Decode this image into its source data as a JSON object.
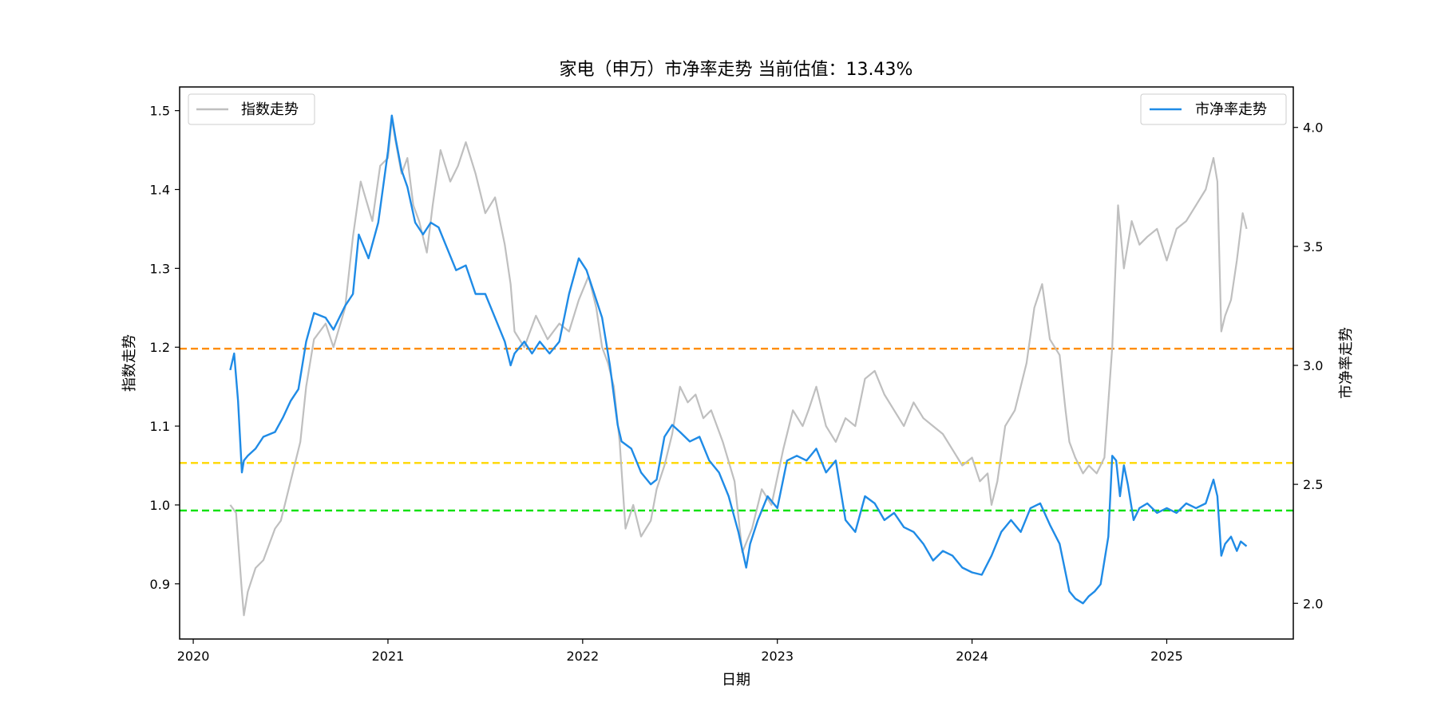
{
  "chart_data": {
    "type": "line",
    "title": "家电（申万）市净率走势 当前估值：13.43%",
    "xlabel": "日期",
    "ylabel_left": "指数走势",
    "ylabel_right": "市净率走势",
    "x_ticks": [
      "2020",
      "2021",
      "2022",
      "2023",
      "2024",
      "2025"
    ],
    "x_range": [
      2019.93,
      2025.65
    ],
    "ylim_left": [
      0.83,
      1.53
    ],
    "yticks_left": [
      0.9,
      1.0,
      1.1,
      1.2,
      1.3,
      1.4,
      1.5
    ],
    "ylim_right": [
      1.85,
      4.17
    ],
    "yticks_right": [
      2.0,
      2.5,
      3.0,
      3.5,
      4.0
    ],
    "legend_left": {
      "label": "指数走势",
      "position": "top-left"
    },
    "legend_right": {
      "label": "市净率走势",
      "position": "top-right"
    },
    "series": [
      {
        "name": "指数走势",
        "axis": "left",
        "color": "#bfbfbf",
        "x": [
          2020.19,
          2020.22,
          2020.25,
          2020.26,
          2020.28,
          2020.32,
          2020.36,
          2020.42,
          2020.45,
          2020.5,
          2020.55,
          2020.58,
          2020.62,
          2020.68,
          2020.72,
          2020.78,
          2020.82,
          2020.86,
          2020.92,
          2020.96,
          2021.0,
          2021.02,
          2021.04,
          2021.07,
          2021.1,
          2021.13,
          2021.16,
          2021.2,
          2021.23,
          2021.27,
          2021.32,
          2021.36,
          2021.4,
          2021.45,
          2021.5,
          2021.55,
          2021.6,
          2021.63,
          2021.65,
          2021.7,
          2021.76,
          2021.82,
          2021.88,
          2021.93,
          2021.98,
          2022.03,
          2022.07,
          2022.1,
          2022.13,
          2022.16,
          2022.19,
          2022.22,
          2022.26,
          2022.3,
          2022.35,
          2022.38,
          2022.42,
          2022.46,
          2022.5,
          2022.54,
          2022.58,
          2022.62,
          2022.66,
          2022.72,
          2022.78,
          2022.82,
          2022.87,
          2022.92,
          2022.97,
          2023.03,
          2023.08,
          2023.13,
          2023.16,
          2023.2,
          2023.25,
          2023.3,
          2023.35,
          2023.4,
          2023.45,
          2023.5,
          2023.55,
          2023.6,
          2023.65,
          2023.7,
          2023.75,
          2023.8,
          2023.85,
          2023.9,
          2023.95,
          2024.0,
          2024.04,
          2024.08,
          2024.1,
          2024.13,
          2024.17,
          2024.22,
          2024.28,
          2024.32,
          2024.36,
          2024.4,
          2024.45,
          2024.48,
          2024.5,
          2024.53,
          2024.57,
          2024.6,
          2024.64,
          2024.68,
          2024.72,
          2024.75,
          2024.78,
          2024.82,
          2024.86,
          2024.9,
          2024.95,
          2025.0,
          2025.05,
          2025.1,
          2025.15,
          2025.2,
          2025.24,
          2025.26,
          2025.28,
          2025.3,
          2025.33,
          2025.36,
          2025.39,
          2025.41
        ],
        "values": [
          1.0,
          0.99,
          0.89,
          0.86,
          0.89,
          0.92,
          0.93,
          0.97,
          0.98,
          1.03,
          1.08,
          1.15,
          1.21,
          1.23,
          1.2,
          1.25,
          1.34,
          1.41,
          1.36,
          1.43,
          1.44,
          1.49,
          1.46,
          1.42,
          1.44,
          1.38,
          1.36,
          1.32,
          1.38,
          1.45,
          1.41,
          1.43,
          1.46,
          1.42,
          1.37,
          1.39,
          1.33,
          1.28,
          1.22,
          1.2,
          1.24,
          1.21,
          1.23,
          1.22,
          1.26,
          1.29,
          1.25,
          1.2,
          1.18,
          1.15,
          1.08,
          0.97,
          1.0,
          0.96,
          0.98,
          1.02,
          1.05,
          1.09,
          1.15,
          1.13,
          1.14,
          1.11,
          1.12,
          1.08,
          1.03,
          0.94,
          0.97,
          1.02,
          1.0,
          1.07,
          1.12,
          1.1,
          1.12,
          1.15,
          1.1,
          1.08,
          1.11,
          1.1,
          1.16,
          1.17,
          1.14,
          1.12,
          1.1,
          1.13,
          1.11,
          1.1,
          1.09,
          1.07,
          1.05,
          1.06,
          1.03,
          1.04,
          1.0,
          1.03,
          1.1,
          1.12,
          1.18,
          1.25,
          1.28,
          1.21,
          1.19,
          1.12,
          1.08,
          1.06,
          1.04,
          1.05,
          1.04,
          1.06,
          1.2,
          1.38,
          1.3,
          1.36,
          1.33,
          1.34,
          1.35,
          1.31,
          1.35,
          1.36,
          1.38,
          1.4,
          1.44,
          1.41,
          1.22,
          1.24,
          1.26,
          1.31,
          1.37,
          1.35
        ]
      },
      {
        "name": "市净率走势",
        "axis": "right",
        "color": "#1f8be6",
        "x": [
          2020.19,
          2020.21,
          2020.23,
          2020.25,
          2020.26,
          2020.28,
          2020.32,
          2020.36,
          2020.42,
          2020.46,
          2020.5,
          2020.54,
          2020.58,
          2020.62,
          2020.68,
          2020.72,
          2020.78,
          2020.82,
          2020.85,
          2020.9,
          2020.95,
          2021.0,
          2021.02,
          2021.04,
          2021.07,
          2021.1,
          2021.14,
          2021.18,
          2021.22,
          2021.26,
          2021.3,
          2021.35,
          2021.4,
          2021.45,
          2021.5,
          2021.55,
          2021.6,
          2021.63,
          2021.65,
          2021.7,
          2021.74,
          2021.78,
          2021.83,
          2021.88,
          2021.93,
          2021.98,
          2022.02,
          2022.06,
          2022.1,
          2022.14,
          2022.18,
          2022.2,
          2022.25,
          2022.3,
          2022.35,
          2022.38,
          2022.42,
          2022.46,
          2022.5,
          2022.55,
          2022.6,
          2022.65,
          2022.7,
          2022.75,
          2022.8,
          2022.84,
          2022.86,
          2022.9,
          2022.95,
          2023.0,
          2023.05,
          2023.1,
          2023.15,
          2023.2,
          2023.25,
          2023.3,
          2023.35,
          2023.4,
          2023.45,
          2023.5,
          2023.55,
          2023.6,
          2023.65,
          2023.7,
          2023.75,
          2023.8,
          2023.85,
          2023.9,
          2023.95,
          2024.0,
          2024.05,
          2024.1,
          2024.15,
          2024.2,
          2024.25,
          2024.3,
          2024.35,
          2024.4,
          2024.45,
          2024.5,
          2024.53,
          2024.57,
          2024.6,
          2024.63,
          2024.66,
          2024.7,
          2024.72,
          2024.74,
          2024.76,
          2024.78,
          2024.8,
          2024.83,
          2024.86,
          2024.9,
          2024.95,
          2025.0,
          2025.05,
          2025.1,
          2025.15,
          2025.2,
          2025.24,
          2025.26,
          2025.28,
          2025.3,
          2025.33,
          2025.36,
          2025.38,
          2025.41
        ],
        "values": [
          2.98,
          3.05,
          2.85,
          2.55,
          2.6,
          2.62,
          2.65,
          2.7,
          2.72,
          2.78,
          2.85,
          2.9,
          3.1,
          3.22,
          3.2,
          3.15,
          3.25,
          3.3,
          3.55,
          3.45,
          3.6,
          3.9,
          4.05,
          3.95,
          3.82,
          3.75,
          3.6,
          3.55,
          3.6,
          3.58,
          3.5,
          3.4,
          3.42,
          3.3,
          3.3,
          3.2,
          3.1,
          3.0,
          3.05,
          3.1,
          3.05,
          3.1,
          3.05,
          3.1,
          3.3,
          3.45,
          3.4,
          3.3,
          3.2,
          3.0,
          2.75,
          2.68,
          2.65,
          2.55,
          2.5,
          2.52,
          2.7,
          2.75,
          2.72,
          2.68,
          2.7,
          2.6,
          2.55,
          2.45,
          2.3,
          2.15,
          2.25,
          2.35,
          2.45,
          2.4,
          2.6,
          2.62,
          2.6,
          2.65,
          2.55,
          2.6,
          2.35,
          2.3,
          2.45,
          2.42,
          2.35,
          2.38,
          2.32,
          2.3,
          2.25,
          2.18,
          2.22,
          2.2,
          2.15,
          2.13,
          2.12,
          2.2,
          2.3,
          2.35,
          2.3,
          2.4,
          2.42,
          2.33,
          2.25,
          2.05,
          2.02,
          2.0,
          2.03,
          2.05,
          2.08,
          2.28,
          2.62,
          2.6,
          2.45,
          2.58,
          2.5,
          2.35,
          2.4,
          2.42,
          2.38,
          2.4,
          2.38,
          2.42,
          2.4,
          2.42,
          2.52,
          2.45,
          2.2,
          2.25,
          2.28,
          2.22,
          2.26,
          2.24
        ]
      }
    ],
    "hlines": [
      {
        "axis": "right",
        "y": 3.07,
        "color": "#ff8c00",
        "style": "dashed"
      },
      {
        "axis": "right",
        "y": 2.59,
        "color": "#ffd700",
        "style": "dashed"
      },
      {
        "axis": "right",
        "y": 2.39,
        "color": "#00e000",
        "style": "dashed"
      }
    ]
  }
}
